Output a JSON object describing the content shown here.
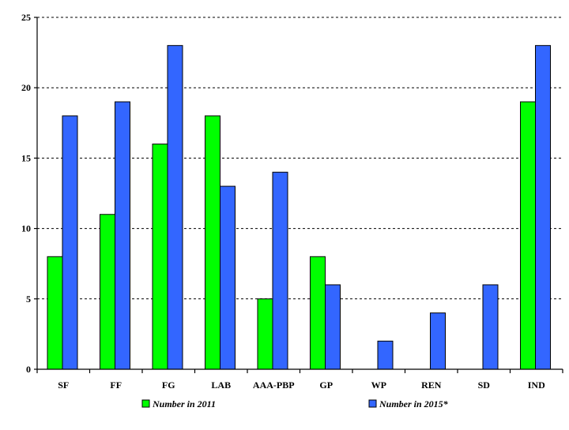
{
  "chart_data": {
    "type": "bar",
    "categories": [
      "SF",
      "FF",
      "FG",
      "LAB",
      "AAA-PBP",
      "GP",
      "WP",
      "REN",
      "SD",
      "IND"
    ],
    "series": [
      {
        "name": "Number in 2011",
        "color": "#00ff00",
        "values": [
          8,
          11,
          16,
          18,
          5,
          8,
          0,
          0,
          0,
          19
        ]
      },
      {
        "name": "Number in 2015*",
        "color": "#3366ff",
        "values": [
          18,
          19,
          23,
          13,
          14,
          6,
          2,
          4,
          6,
          23
        ]
      }
    ],
    "ylim": [
      0,
      25
    ],
    "yticks": [
      "0",
      "5",
      "10",
      "15",
      "20",
      "25"
    ],
    "grid": true,
    "legend_position": "bottom"
  }
}
